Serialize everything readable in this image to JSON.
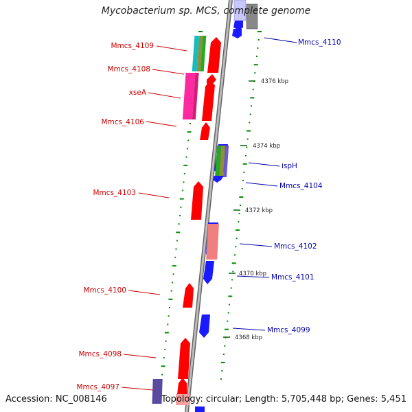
{
  "title": "Mycobacterium sp. MCS, complete genome",
  "accession": "Accession: NC_008146",
  "topology": "Topology: circular; Length: 5,705,448 bp; Genes: 5,451",
  "colors": {
    "forward_strand": "#ff0000",
    "reverse_strand": "#0000ff",
    "forward_label": "#cc0000",
    "reverse_label": "#0000aa",
    "backbone": "#999999",
    "dots": "#008800"
  },
  "left_labels": [
    {
      "id": "mmcs4109",
      "text": "Mmcs_4109"
    },
    {
      "id": "mmcs4108",
      "text": "Mmcs_4108"
    },
    {
      "id": "xsea",
      "text": "xseA"
    },
    {
      "id": "mmcs4106",
      "text": "Mmcs_4106"
    },
    {
      "id": "mmcs4103",
      "text": "Mmcs_4103"
    },
    {
      "id": "mmcs4100",
      "text": "Mmcs_4100"
    },
    {
      "id": "mmcs4098",
      "text": "Mmcs_4098"
    },
    {
      "id": "mmcs4097",
      "text": "Mmcs_4097"
    }
  ],
  "right_labels": [
    {
      "id": "mmcs4110",
      "text": "Mmcs_4110"
    },
    {
      "id": "isph",
      "text": "ispH"
    },
    {
      "id": "mmcs4104",
      "text": "Mmcs_4104"
    },
    {
      "id": "mmcs4102",
      "text": "Mmcs_4102"
    },
    {
      "id": "mmcs4101",
      "text": "Mmcs_4101"
    },
    {
      "id": "mmcs4099",
      "text": "Mmcs_4099"
    }
  ],
  "ticks": [
    {
      "id": "t4376",
      "text": "4376 kbp"
    },
    {
      "id": "t4374",
      "text": "4374 kbp"
    },
    {
      "id": "t4372",
      "text": "4372 kbp"
    },
    {
      "id": "t4370",
      "text": "4370 kbp"
    },
    {
      "id": "t4368",
      "text": "4368 kbp"
    }
  ]
}
